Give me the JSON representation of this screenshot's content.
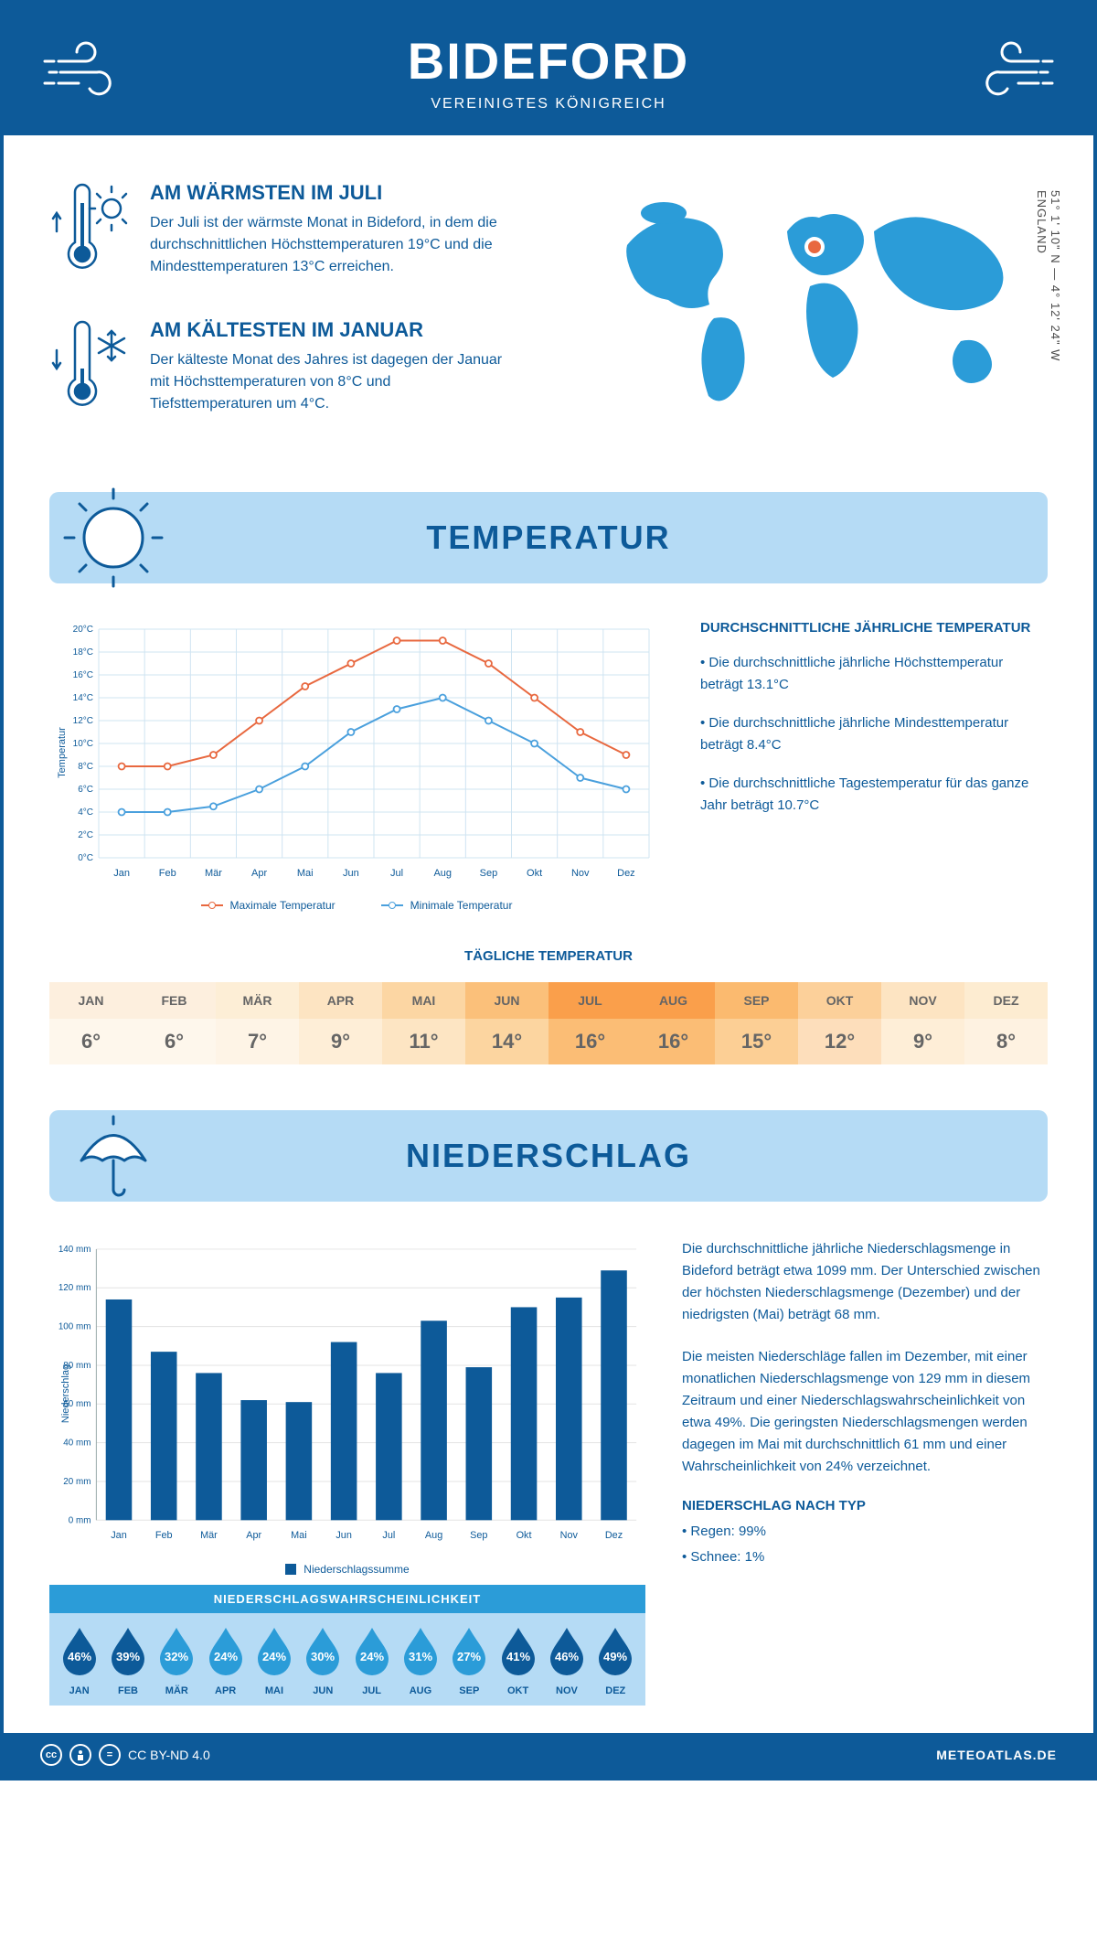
{
  "header": {
    "title": "BIDEFORD",
    "subtitle": "VEREINIGTES KÖNIGREICH"
  },
  "coords": {
    "lat": "51° 1' 10\" N",
    "lon": "4° 12' 24\" W",
    "region": "ENGLAND"
  },
  "facts": {
    "warm": {
      "title": "AM WÄRMSTEN IM JULI",
      "body": "Der Juli ist der wärmste Monat in Bideford, in dem die durchschnittlichen Höchsttemperaturen 19°C und die Mindesttemperaturen 13°C erreichen."
    },
    "cold": {
      "title": "AM KÄLTESTEN IM JANUAR",
      "body": "Der kälteste Monat des Jahres ist dagegen der Januar mit Höchsttemperaturen von 8°C und Tiefsttemperaturen um 4°C."
    }
  },
  "months": [
    "Jan",
    "Feb",
    "Mär",
    "Apr",
    "Mai",
    "Jun",
    "Jul",
    "Aug",
    "Sep",
    "Okt",
    "Nov",
    "Dez"
  ],
  "months_upper": [
    "JAN",
    "FEB",
    "MÄR",
    "APR",
    "MAI",
    "JUN",
    "JUL",
    "AUG",
    "SEP",
    "OKT",
    "NOV",
    "DEZ"
  ],
  "temperature": {
    "section_title": "TEMPERATUR",
    "ylabel": "Temperatur",
    "ylim": [
      0,
      20
    ],
    "ytick_step": 2,
    "ytick_suffix": "°C",
    "grid_color": "#cfe4f2",
    "series": {
      "max": {
        "label": "Maximale Temperatur",
        "color": "#e8683f",
        "values": [
          8,
          8,
          9,
          12,
          15,
          17,
          19,
          19,
          17,
          14,
          11,
          9
        ]
      },
      "min": {
        "label": "Minimale Temperatur",
        "color": "#4aa0dd",
        "values": [
          4,
          4,
          4.5,
          6,
          8,
          11,
          13,
          14,
          12,
          10,
          7,
          6
        ]
      }
    },
    "side": {
      "title": "DURCHSCHNITTLICHE JÄHRLICHE TEMPERATUR",
      "b1": "• Die durchschnittliche jährliche Höchsttemperatur beträgt 13.1°C",
      "b2": "• Die durchschnittliche jährliche Mindesttemperatur beträgt 8.4°C",
      "b3": "• Die durchschnittliche Tagestemperatur für das ganze Jahr beträgt 10.7°C"
    },
    "daily": {
      "title": "TÄGLICHE TEMPERATUR",
      "values": [
        "6°",
        "6°",
        "7°",
        "9°",
        "11°",
        "14°",
        "16°",
        "16°",
        "15°",
        "12°",
        "9°",
        "8°"
      ],
      "head_colors": [
        "#fdefde",
        "#fdefde",
        "#fdeed6",
        "#fde4c2",
        "#fcd6a3",
        "#fbc07a",
        "#fa9f4b",
        "#fa9f4b",
        "#fbba6f",
        "#fcd09a",
        "#fde4c2",
        "#fdecd1"
      ],
      "val_colors": [
        "#fef7ec",
        "#fef7ec",
        "#fef4e6",
        "#feeed7",
        "#fde5c3",
        "#fcd5a0",
        "#fbbd75",
        "#fbbd75",
        "#fccf95",
        "#fddebb",
        "#feeed7",
        "#fef2e1"
      ]
    }
  },
  "precip": {
    "section_title": "NIEDERSCHLAG",
    "ylabel": "Niederschlag",
    "ylim": [
      0,
      140
    ],
    "ytick_step": 20,
    "ytick_suffix": " mm",
    "grid_color": "#e3e3e3",
    "bar_color": "#0d5a99",
    "bar_width": 0.58,
    "values": [
      114,
      87,
      76,
      62,
      61,
      92,
      76,
      103,
      79,
      110,
      115,
      129
    ],
    "legend": "Niederschlagssumme",
    "text": {
      "p1": "Die durchschnittliche jährliche Niederschlagsmenge in Bideford beträgt etwa 1099 mm. Der Unterschied zwischen der höchsten Niederschlagsmenge (Dezember) und der niedrigsten (Mai) beträgt 68 mm.",
      "p2": "Die meisten Niederschläge fallen im Dezember, mit einer monatlichen Niederschlagsmenge von 129 mm in diesem Zeitraum und einer Niederschlagswahrscheinlichkeit von etwa 49%. Die geringsten Niederschlagsmengen werden dagegen im Mai mit durchschnittlich 61 mm und einer Wahrscheinlichkeit von 24% verzeichnet.",
      "type_title": "NIEDERSCHLAG NACH TYP",
      "rain": "• Regen: 99%",
      "snow": "• Schnee: 1%"
    },
    "probability": {
      "title": "NIEDERSCHLAGSWAHRSCHEINLICHKEIT",
      "values": [
        46,
        39,
        32,
        24,
        24,
        30,
        24,
        31,
        27,
        41,
        46,
        49
      ],
      "dark_color": "#0d5a99",
      "light_color": "#2b9cd8"
    }
  },
  "footer": {
    "license": "CC BY-ND 4.0",
    "site": "METEOATLAS.DE"
  },
  "colors": {
    "brand": "#0d5a99",
    "light_blue": "#b5dbf5",
    "map": "#2b9cd8",
    "marker": "#e8683f"
  }
}
